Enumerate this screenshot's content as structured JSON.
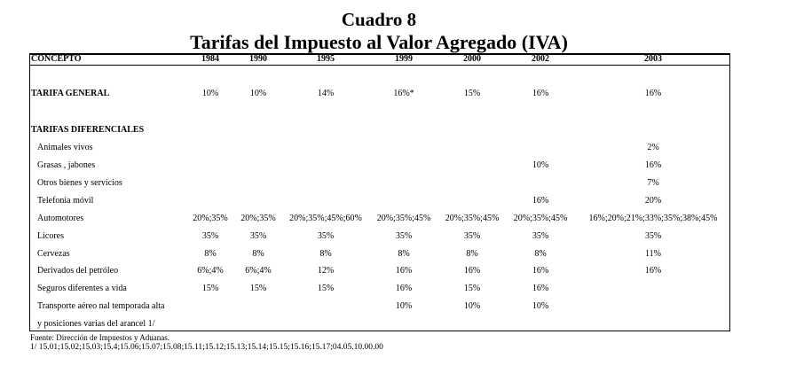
{
  "header": {
    "title": "Cuadro 8",
    "subtitle": "Tarifas del Impuesto al Valor Agregado (IVA)"
  },
  "table": {
    "columns": [
      "CONCEPTO",
      "1984",
      "1990",
      "1995",
      "1999",
      "2000",
      "2002",
      "2003"
    ],
    "rows": [
      {
        "label": "TARIFA GENERAL",
        "cells": [
          "10%",
          "10%",
          "14%",
          "16%*",
          "15%",
          "16%",
          "16%"
        ]
      },
      {
        "label": "TARIFAS DIFERENCIALES",
        "cells": [
          null,
          null,
          null,
          null,
          null,
          null,
          null
        ]
      },
      {
        "label": "Animales vivos",
        "cells": [
          null,
          null,
          null,
          null,
          null,
          null,
          "2%"
        ]
      },
      {
        "label": "Grasas , jabones",
        "cells": [
          null,
          null,
          null,
          null,
          null,
          "10%",
          "16%"
        ]
      },
      {
        "label": "Otros bienes y servicios",
        "cells": [
          null,
          null,
          null,
          null,
          null,
          null,
          "7%"
        ]
      },
      {
        "label": "Telefonia móvil",
        "cells": [
          null,
          null,
          null,
          null,
          null,
          "16%",
          "20%"
        ]
      },
      {
        "label": "Automotores",
        "cells": [
          "20%;35%",
          "20%;35%",
          "20%;35%;45%;60%",
          "20%;35%;45%",
          "20%;35%;45%",
          "20%;35%;45%",
          "16%;20%;21%;33%;35%;38%;45%"
        ]
      },
      {
        "label": "Licores",
        "cells": [
          "35%",
          "35%",
          "35%",
          "35%",
          "35%",
          "35%",
          "35%"
        ]
      },
      {
        "label": "Cervezas",
        "cells": [
          "8%",
          "8%",
          "8%",
          "8%",
          "8%",
          "8%",
          "11%"
        ]
      },
      {
        "label": "Derivados del petróleo",
        "cells": [
          "6%;4%",
          "6%;4%",
          "12%",
          "16%",
          "16%",
          "16%",
          "16%"
        ]
      },
      {
        "label": "Seguros diferentes a vida",
        "cells": [
          "15%",
          "15%",
          "15%",
          "16%",
          "15%",
          "16%",
          null
        ]
      },
      {
        "label": "Transporte aéreo nal  temporada alta",
        "cells": [
          null,
          null,
          null,
          "10%",
          "10%",
          "10%",
          null
        ]
      },
      {
        "label": "y posiciones varias del arancel  1/",
        "cells": [
          null,
          null,
          null,
          null,
          null,
          null,
          null
        ]
      }
    ]
  },
  "footer": {
    "source": "Fuente: Dirección de Impuestos y Aduanas.",
    "note": "1/  15.01;15.02;15.03;15.4;15.06;15.07;15.08;15.11;15.12;15.13;15.14;15.15;15.16;15.17;04.05.10.00.00"
  }
}
